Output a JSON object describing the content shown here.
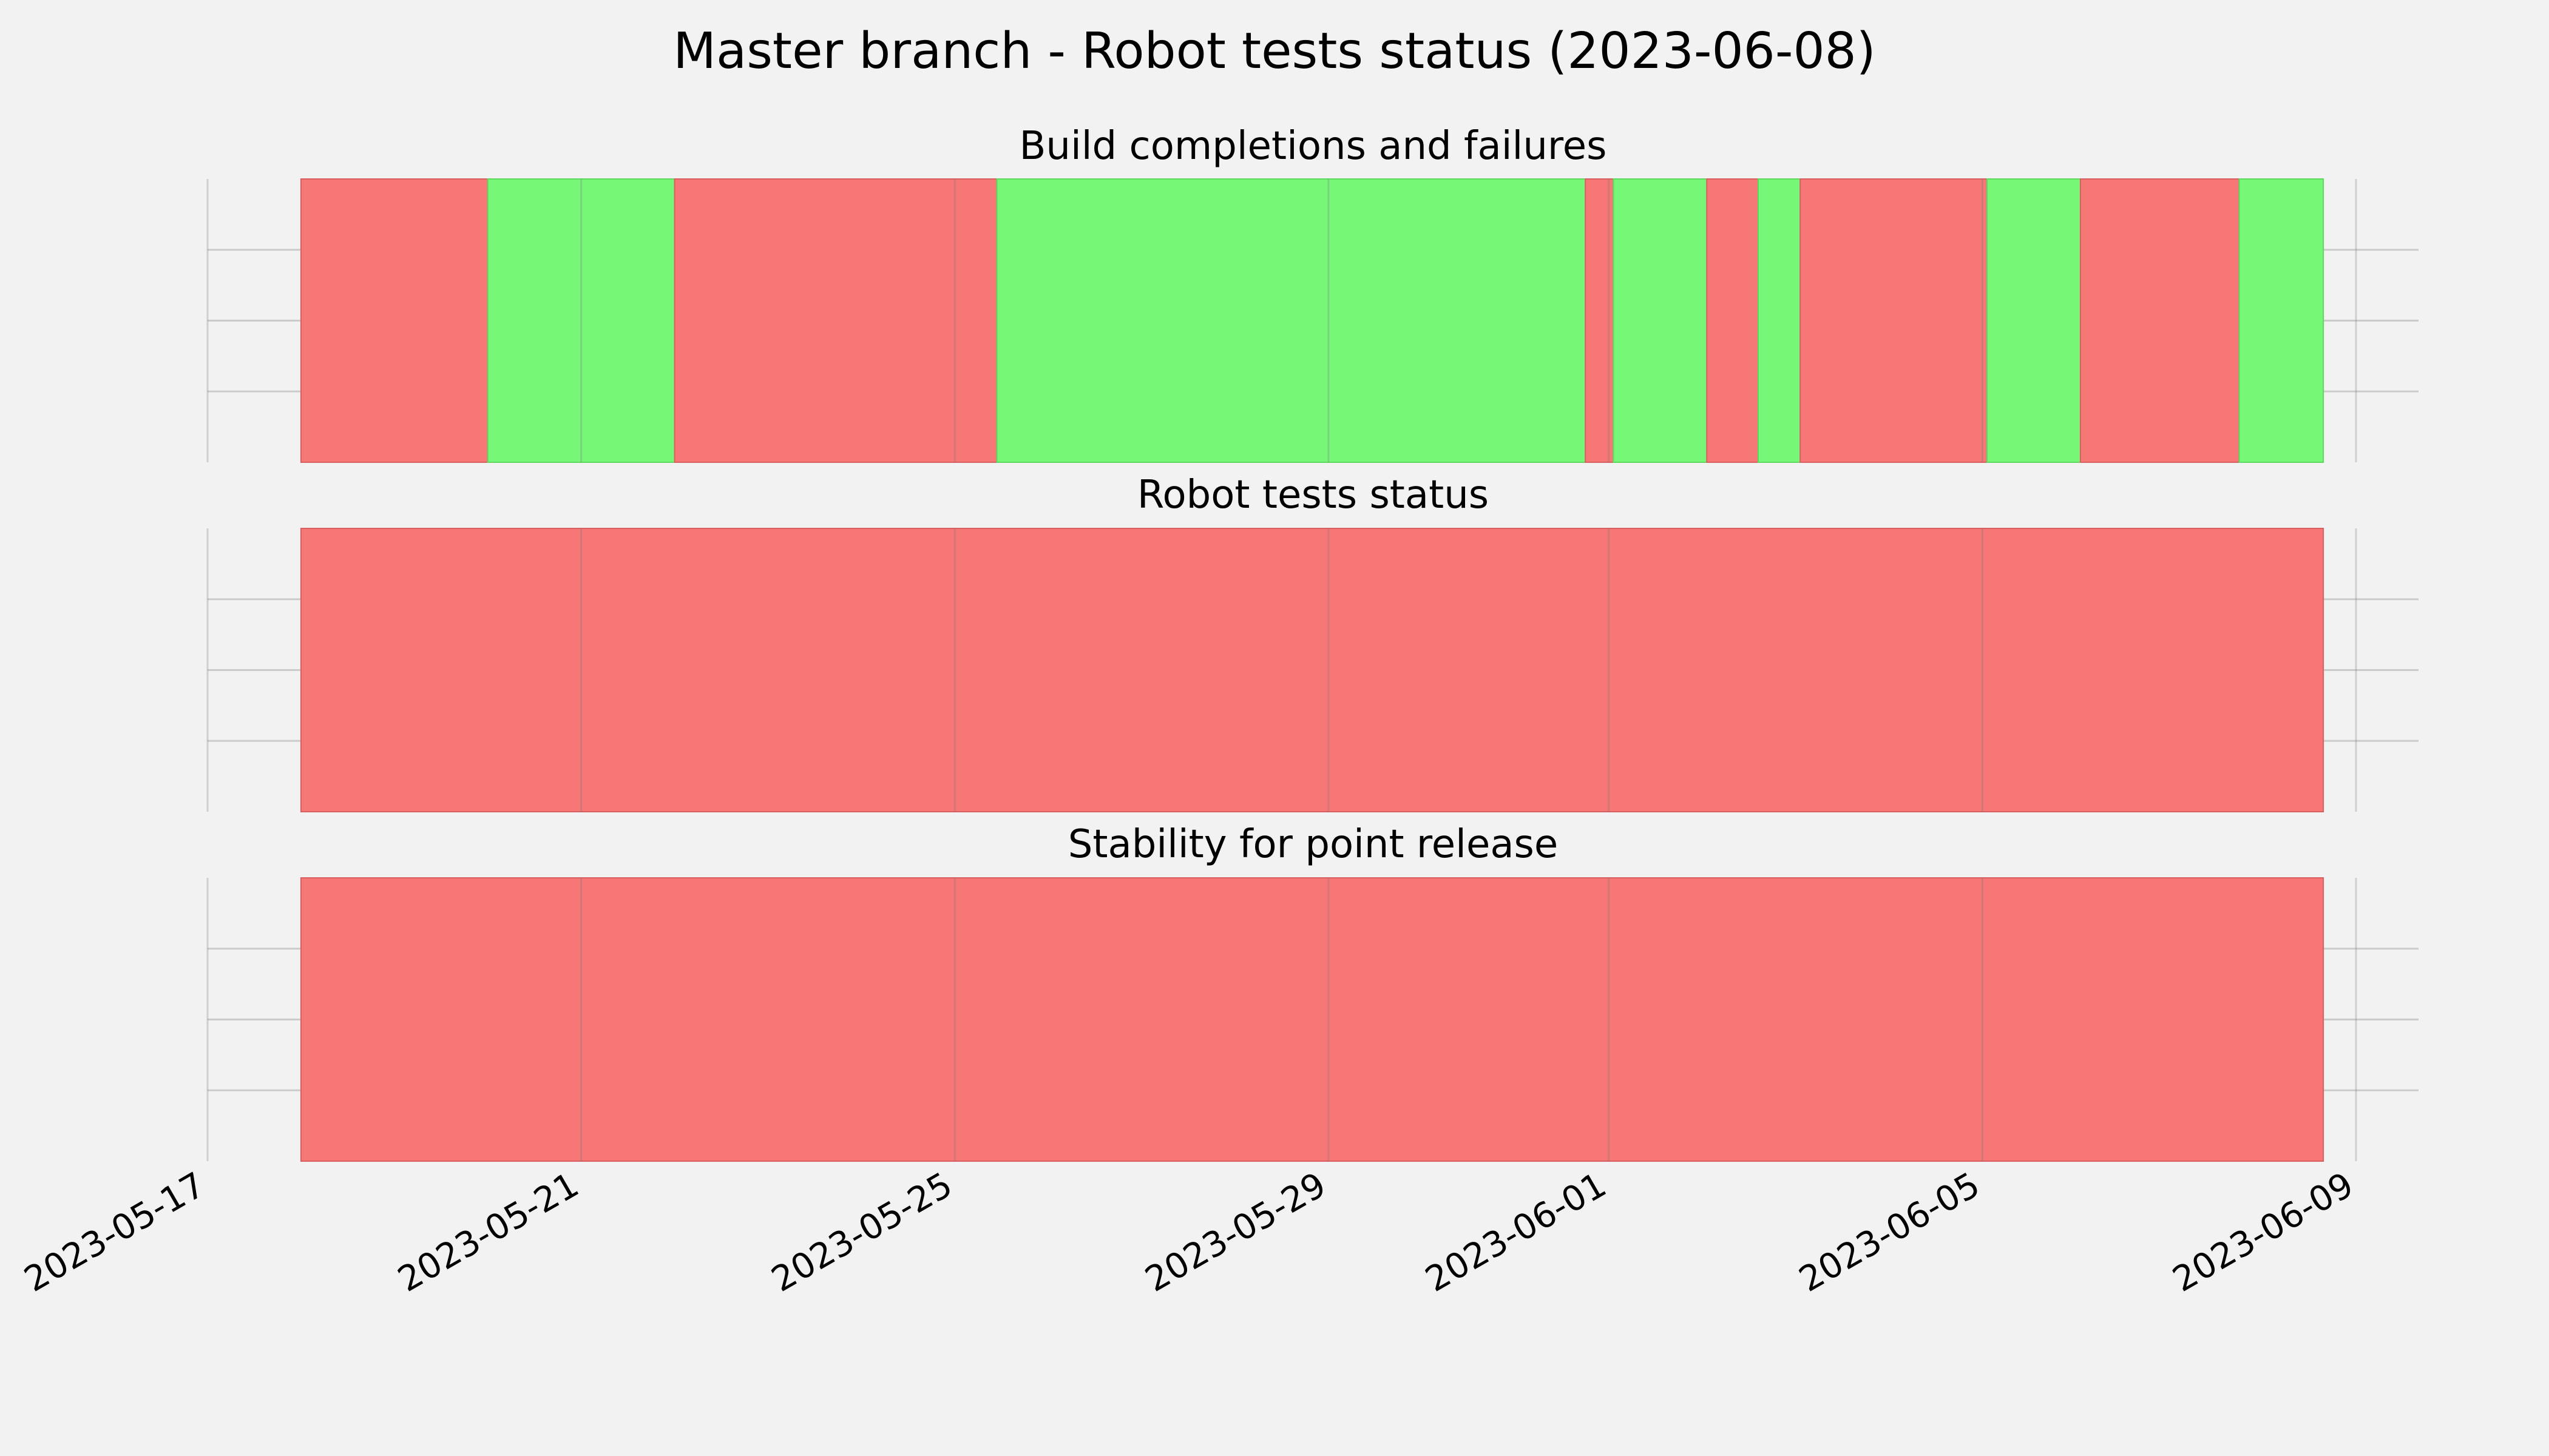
{
  "chart_data": {
    "type": "timeline",
    "title": "Master branch - Robot tests status (2023-06-08)",
    "x_ticks": [
      "2023-05-17",
      "2023-05-21",
      "2023-05-25",
      "2023-05-29",
      "2023-06-01",
      "2023-06-05",
      "2023-06-09"
    ],
    "xlim": [
      "2023-05-17",
      "2023-06-09"
    ],
    "grid": true,
    "colors": {
      "pass": "#77f777",
      "fail": "#f77777",
      "background": "#f2f2f2",
      "grid": "#cbcbcb"
    },
    "panels": [
      {
        "title": "Build completions and failures",
        "segments": [
          {
            "start": "2023-05-18",
            "end": "2023-05-20",
            "status": "fail"
          },
          {
            "start": "2023-05-20",
            "end": "2023-05-22",
            "status": "pass"
          },
          {
            "start": "2023-05-22",
            "end": "2023-05-25.45",
            "status": "fail"
          },
          {
            "start": "2023-05-25.45",
            "end": "2023-05-31.75",
            "status": "pass"
          },
          {
            "start": "2023-05-31.75",
            "end": "2023-06-01.05",
            "status": "fail"
          },
          {
            "start": "2023-06-01.05",
            "end": "2023-06-02.05",
            "status": "pass"
          },
          {
            "start": "2023-06-02.05",
            "end": "2023-06-02.6",
            "status": "fail"
          },
          {
            "start": "2023-06-02.6",
            "end": "2023-06-03.05",
            "status": "pass"
          },
          {
            "start": "2023-06-03.05",
            "end": "2023-06-05.05",
            "status": "fail"
          },
          {
            "start": "2023-06-05.05",
            "end": "2023-06-06.05",
            "status": "pass"
          },
          {
            "start": "2023-06-06.05",
            "end": "2023-06-07.75",
            "status": "fail"
          },
          {
            "start": "2023-06-07.75",
            "end": "2023-06-08.65",
            "status": "pass"
          }
        ]
      },
      {
        "title": "Robot tests status",
        "segments": [
          {
            "start": "2023-05-18",
            "end": "2023-06-08.65",
            "status": "fail"
          }
        ]
      },
      {
        "title": "Stability for point release",
        "segments": [
          {
            "start": "2023-05-18",
            "end": "2023-06-08.65",
            "status": "fail"
          }
        ]
      }
    ]
  }
}
